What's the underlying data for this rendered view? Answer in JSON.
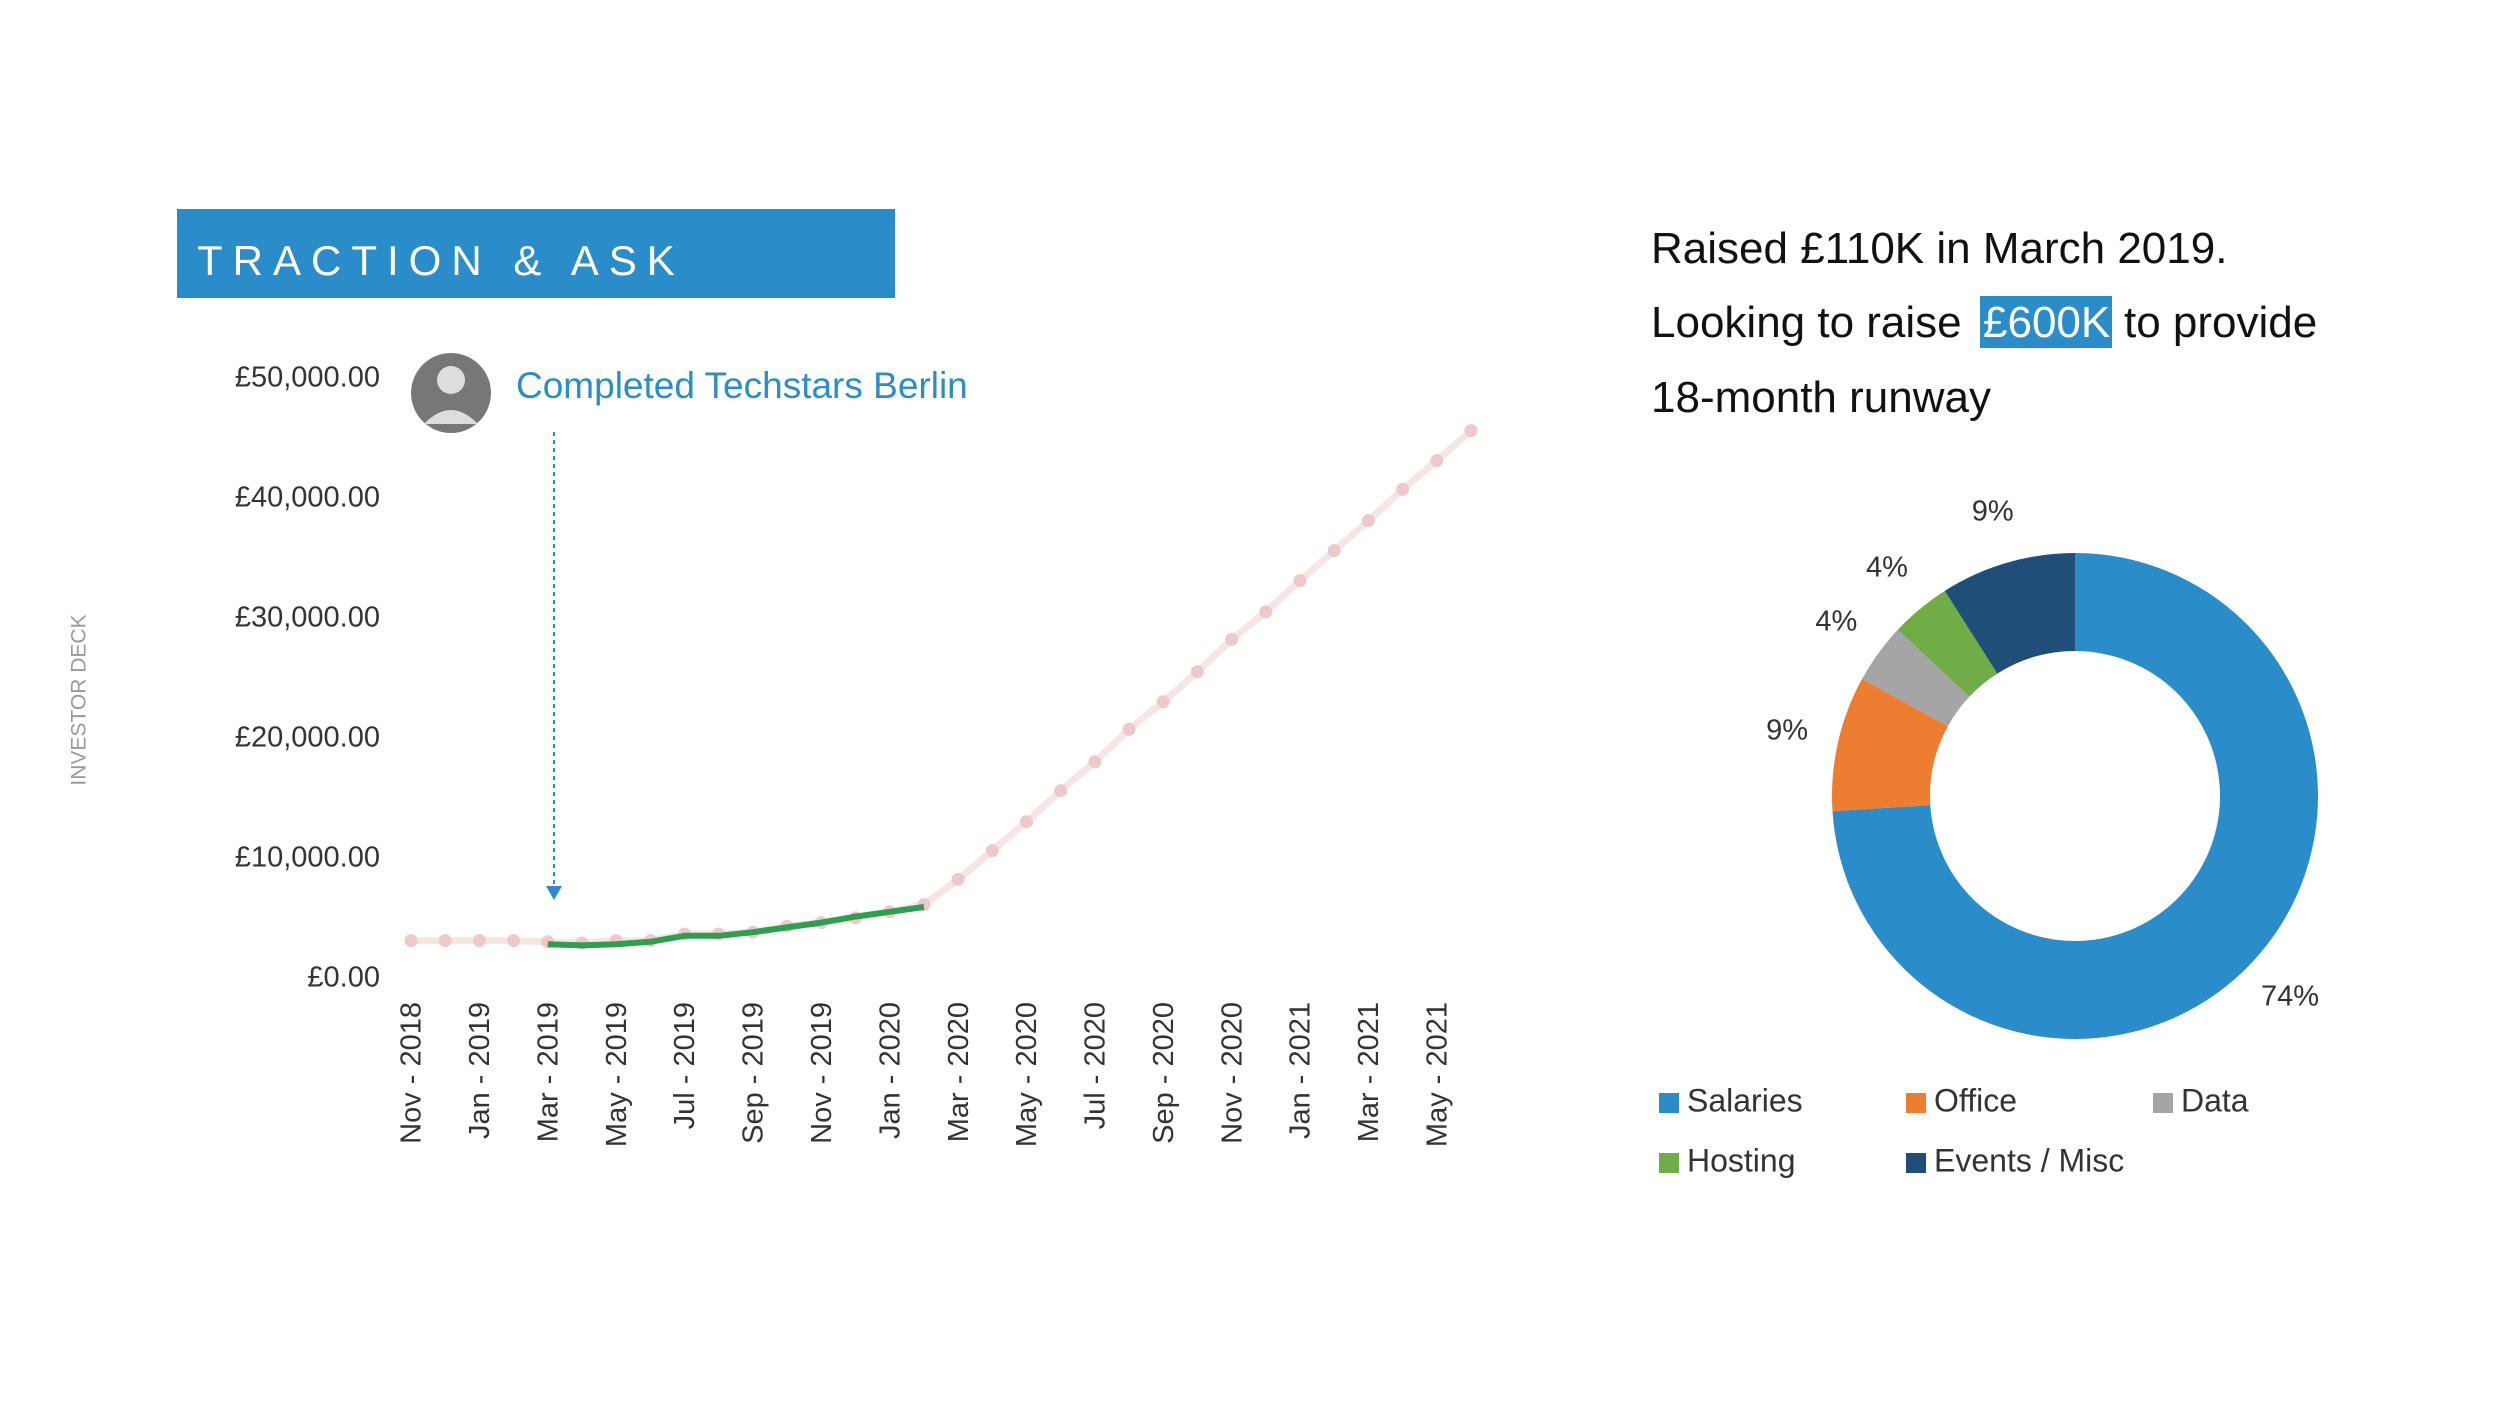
{
  "slide": {
    "title": "TRACTION & ASK",
    "side_label": "INVESTOR DECK",
    "ask": {
      "line1": "Raised £110K in March 2019.",
      "line2_start": "Looking to raise",
      "highlight": "£600K",
      "line2_end": "to provide",
      "line3": "18-month runway"
    }
  },
  "chart_data": [
    {
      "type": "line",
      "annotation": "Completed Techstars Berlin",
      "categories": [
        "Nov - 2018",
        null,
        "Jan - 2019",
        null,
        "Mar - 2019",
        null,
        "May - 2019",
        null,
        "Jul - 2019",
        null,
        "Sep - 2019",
        null,
        "Nov - 2019",
        null,
        "Jan - 2020",
        null,
        "Mar - 2020",
        null,
        "May - 2020",
        null,
        "Jul - 2020",
        null,
        "Sep - 2020",
        null,
        "Nov - 2020",
        null,
        "Jan - 2021",
        null,
        "Mar - 2021",
        null,
        "May - 2021",
        null
      ],
      "series": [
        {
          "color": "#efc9c9",
          "values": [
            3200,
            3200,
            3200,
            3200,
            3100,
            3000,
            3200,
            3200,
            3750,
            3750,
            3900,
            4400,
            4700,
            5100,
            5600,
            6200,
            8300,
            10700,
            13100,
            15700,
            18100,
            20800,
            23100,
            25600,
            28300,
            30600,
            33200,
            35700,
            38200,
            40800,
            43200,
            45700
          ]
        },
        {
          "color": "#2e9e4f",
          "values": [
            null,
            null,
            null,
            null,
            2900,
            2800,
            2900,
            3100,
            3600,
            3600,
            3900,
            4300,
            4700,
            5200,
            5600,
            6000,
            null,
            null,
            null,
            null,
            null,
            null,
            null,
            null,
            null,
            null,
            null,
            null,
            null,
            null,
            null,
            null
          ]
        }
      ],
      "ylim": [
        0,
        50000
      ],
      "yticks": [
        {
          "value": 0,
          "label": "£0.00"
        },
        {
          "value": 10000,
          "label": "£10,000.00"
        },
        {
          "value": 20000,
          "label": "£20,000.00"
        },
        {
          "value": 30000,
          "label": "£30,000.00"
        },
        {
          "value": 40000,
          "label": "£40,000.00"
        },
        {
          "value": 50000,
          "label": "£50,000.00"
        }
      ]
    },
    {
      "type": "pie",
      "categories": [
        "Salaries",
        "Office",
        "Data",
        "Hosting",
        "Events / Misc"
      ],
      "values": [
        74,
        9,
        4,
        4,
        9
      ],
      "value_labels": [
        "74%",
        "9%",
        "4%",
        "4%",
        "9%"
      ],
      "colors": [
        "#2a8dca",
        "#ed7d31",
        "#a5a5a5",
        "#70ad47",
        "#1f4e79"
      ]
    }
  ]
}
